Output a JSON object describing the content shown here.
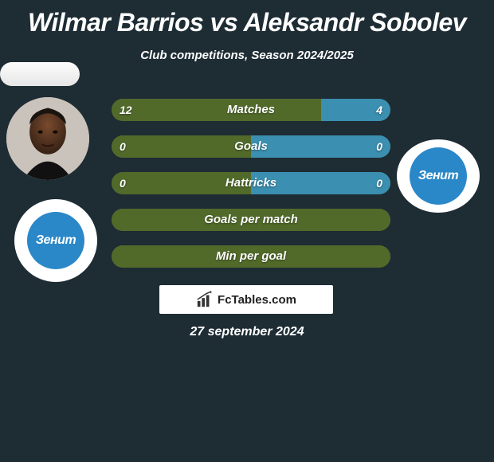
{
  "title": "Wilmar Barrios vs Aleksandr Sobolev",
  "subtitle": "Club competitions, Season 2024/2025",
  "date": "27 september 2024",
  "brand": "FcTables.com",
  "colors": {
    "left_bar": "#516a2a",
    "right_bar": "#3b8fb0",
    "background": "#1e2c34",
    "zenit_blue": "#2a88c8"
  },
  "club_text": "Зенит",
  "bars": [
    {
      "label": "Matches",
      "left": "12",
      "right": "4",
      "show_values": true,
      "split": 0.75
    },
    {
      "label": "Goals",
      "left": "0",
      "right": "0",
      "show_values": true,
      "split": 0.5
    },
    {
      "label": "Hattricks",
      "left": "0",
      "right": "0",
      "show_values": true,
      "split": 0.5
    },
    {
      "label": "Goals per match",
      "left": "",
      "right": "",
      "show_values": false,
      "split": 1.0
    },
    {
      "label": "Min per goal",
      "left": "",
      "right": "",
      "show_values": false,
      "split": 1.0
    }
  ]
}
